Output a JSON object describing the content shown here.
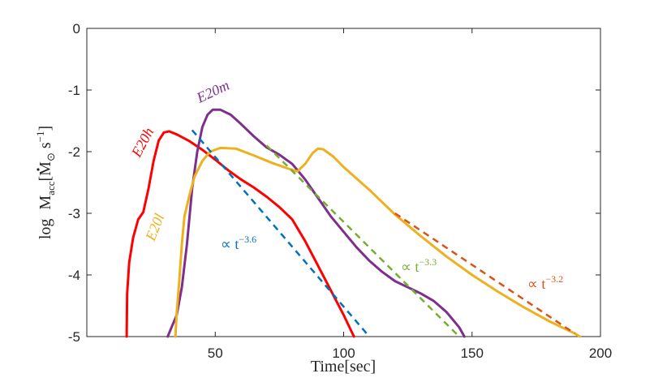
{
  "chart_data": {
    "type": "line",
    "title": "",
    "xlabel": "Time[sec]",
    "ylabel_parts": {
      "log": "log",
      "M": "M",
      "acc": "acc",
      "units_M": "[M",
      "sun": "⊙",
      "units_s": " s",
      "exp": "−1",
      "close": "]"
    },
    "xlim": [
      0,
      200
    ],
    "ylim": [
      -5,
      0
    ],
    "xticks": [
      50,
      100,
      150,
      200
    ],
    "yticks": [
      0,
      -1,
      -2,
      -3,
      -4,
      -5
    ],
    "xtick_labels": [
      "50",
      "100",
      "150",
      "200"
    ],
    "ytick_labels": [
      "0",
      "-1",
      "-2",
      "-3",
      "-4",
      "-5"
    ],
    "series": [
      {
        "name": "E20h",
        "color": "#ff0000",
        "points": [
          [
            15.5,
            -5
          ],
          [
            15.7,
            -4.3
          ],
          [
            16.5,
            -3.8
          ],
          [
            18,
            -3.4
          ],
          [
            20,
            -3.1
          ],
          [
            22,
            -2.98
          ],
          [
            24,
            -2.6
          ],
          [
            26,
            -2.15
          ],
          [
            28,
            -1.82
          ],
          [
            30,
            -1.69
          ],
          [
            32,
            -1.67
          ],
          [
            35,
            -1.72
          ],
          [
            40,
            -1.83
          ],
          [
            45,
            -1.97
          ],
          [
            50,
            -2.13
          ],
          [
            55,
            -2.3
          ],
          [
            60,
            -2.45
          ],
          [
            65,
            -2.58
          ],
          [
            70,
            -2.73
          ],
          [
            75,
            -2.9
          ],
          [
            80,
            -3.1
          ],
          [
            85,
            -3.45
          ],
          [
            90,
            -3.85
          ],
          [
            95,
            -4.25
          ],
          [
            100,
            -4.65
          ],
          [
            104,
            -5
          ]
        ]
      },
      {
        "name": "E20m",
        "color": "#7e2f8e",
        "points": [
          [
            31.5,
            -5
          ],
          [
            33,
            -4.85
          ],
          [
            35,
            -4.65
          ],
          [
            37,
            -4.2
          ],
          [
            39,
            -3.5
          ],
          [
            41,
            -2.6
          ],
          [
            43,
            -2
          ],
          [
            45,
            -1.6
          ],
          [
            47,
            -1.4
          ],
          [
            49,
            -1.32
          ],
          [
            52,
            -1.32
          ],
          [
            56,
            -1.4
          ],
          [
            60,
            -1.55
          ],
          [
            65,
            -1.75
          ],
          [
            70,
            -1.93
          ],
          [
            75,
            -2.05
          ],
          [
            80,
            -2.2
          ],
          [
            85,
            -2.45
          ],
          [
            90,
            -2.75
          ],
          [
            95,
            -3.05
          ],
          [
            100,
            -3.3
          ],
          [
            105,
            -3.55
          ],
          [
            110,
            -3.77
          ],
          [
            115,
            -3.95
          ],
          [
            120,
            -4.1
          ],
          [
            125,
            -4.2
          ],
          [
            130,
            -4.3
          ],
          [
            135,
            -4.42
          ],
          [
            140,
            -4.6
          ],
          [
            145,
            -4.85
          ],
          [
            147,
            -5
          ]
        ]
      },
      {
        "name": "E20l",
        "color": "#edb120",
        "points": [
          [
            34.5,
            -5
          ],
          [
            35,
            -4.6
          ],
          [
            36,
            -4.1
          ],
          [
            37,
            -3.5
          ],
          [
            38,
            -3.05
          ],
          [
            40,
            -2.7
          ],
          [
            42,
            -2.4
          ],
          [
            45,
            -2.15
          ],
          [
            48,
            -2.0
          ],
          [
            52,
            -1.94
          ],
          [
            58,
            -1.95
          ],
          [
            65,
            -2.06
          ],
          [
            72,
            -2.18
          ],
          [
            78,
            -2.27
          ],
          [
            82,
            -2.32
          ],
          [
            85,
            -2.2
          ],
          [
            88,
            -2.02
          ],
          [
            90,
            -1.95
          ],
          [
            92,
            -1.96
          ],
          [
            96,
            -2.08
          ],
          [
            100,
            -2.25
          ],
          [
            110,
            -2.62
          ],
          [
            120,
            -3.02
          ],
          [
            130,
            -3.37
          ],
          [
            140,
            -3.7
          ],
          [
            150,
            -4.0
          ],
          [
            160,
            -4.27
          ],
          [
            170,
            -4.52
          ],
          [
            180,
            -4.75
          ],
          [
            190,
            -4.95
          ],
          [
            192,
            -5
          ]
        ]
      }
    ],
    "fits": [
      {
        "name": "∝ t^-3.6",
        "color": "#0072bd",
        "x": [
          41,
          110
        ],
        "y": [
          -1.65,
          -5.0
        ]
      },
      {
        "name": "∝ t^-3.3",
        "color": "#77ac30",
        "x": [
          70,
          145
        ],
        "y": [
          -1.9,
          -5.0
        ]
      },
      {
        "name": "∝ t^-3.2",
        "color": "#d95319",
        "x": [
          120,
          190
        ],
        "y": [
          -3.0,
          -4.95
        ]
      }
    ],
    "annotations": [
      {
        "series": "E20h",
        "text": "E20h",
        "color": "#ff0000"
      },
      {
        "series": "E20m",
        "text": "E20m",
        "color": "#7e2f8e"
      },
      {
        "series": "E20l",
        "text": "E20l",
        "color": "#edb120"
      },
      {
        "fit": "fit-3.6",
        "prop": "∝ t",
        "exp": "−3.6",
        "color": "#0072bd"
      },
      {
        "fit": "fit-3.3",
        "prop": "∝ t",
        "exp": "−3.3",
        "color": "#77ac30"
      },
      {
        "fit": "fit-3.2",
        "prop": "∝ t",
        "exp": "−3.2",
        "color": "#d95319"
      }
    ]
  }
}
